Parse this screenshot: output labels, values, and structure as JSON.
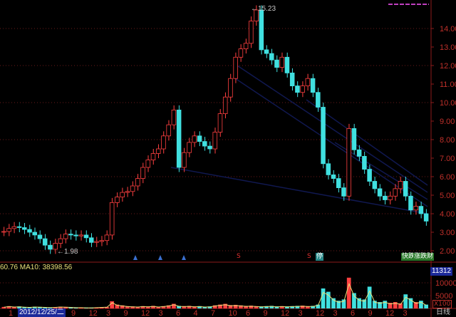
{
  "chart_data": {
    "type": "candlestick",
    "price_axis": {
      "ticks": [
        "14.00",
        "13.00",
        "12.00",
        "11.00",
        "10.00",
        "9.00",
        "8.00",
        "7.00",
        "6.00",
        "5.00",
        "4.00",
        "3.00",
        "2.00"
      ],
      "range": [
        2,
        14
      ]
    },
    "high_label": "15.23",
    "low_label": "1.98",
    "closes": [
      3.04,
      3.2,
      3.3,
      3.25,
      3.15,
      3.0,
      2.85,
      2.65,
      2.3,
      2.08,
      2.4,
      2.65,
      2.9,
      2.85,
      2.8,
      2.85,
      2.7,
      2.45,
      2.5,
      2.55,
      2.85,
      4.6,
      4.9,
      5.15,
      5.2,
      5.5,
      5.9,
      6.5,
      6.9,
      7.25,
      7.5,
      8.2,
      8.8,
      9.6,
      6.5,
      7.3,
      7.85,
      8.2,
      7.9,
      7.65,
      7.5,
      8.4,
      9.4,
      10.3,
      11.3,
      12.45,
      12.9,
      13.2,
      14.4,
      15.0,
      12.85,
      12.65,
      12.3,
      11.9,
      12.45,
      11.6,
      10.9,
      10.55,
      10.9,
      11.3,
      10.55,
      9.75,
      6.7,
      6.1,
      5.9,
      5.4,
      4.95,
      8.6,
      7.45,
      7.1,
      6.4,
      5.75,
      5.35,
      4.95,
      4.75,
      4.95,
      5.35,
      5.75,
      4.95,
      4.2,
      4.4,
      4.0,
      3.6
    ],
    "volume_axis": {
      "ticks": [
        "10000",
        "5000"
      ],
      "unit": "X100",
      "range": [
        0,
        12000
      ]
    },
    "volumes": [
      600,
      900,
      700,
      800,
      600,
      500,
      700,
      600,
      500,
      400,
      500,
      700,
      600,
      500,
      400,
      400,
      300,
      300,
      400,
      500,
      600,
      2800,
      1500,
      1200,
      900,
      800,
      700,
      900,
      800,
      1000,
      700,
      900,
      1200,
      1800,
      1000,
      900,
      1000,
      800,
      900,
      700,
      800,
      1200,
      1500,
      1800,
      1300,
      1400,
      1200,
      1000,
      1100,
      900,
      800,
      900,
      1000,
      800,
      900,
      800,
      900,
      1000,
      1100,
      900,
      1000,
      1500,
      7800,
      6500,
      4000,
      3000,
      3500,
      12000,
      6000,
      4000,
      3500,
      8500,
      3000,
      2500,
      3000,
      2200,
      2500,
      2000,
      5500,
      4000,
      2500,
      3000,
      1500
    ],
    "last_volume": "11312",
    "ma_text": "60.76  MA10: 38398.56",
    "x_ticks": [
      "1",
      "9",
      "12",
      "3",
      "9",
      "12",
      "3",
      "6",
      "4",
      "7",
      "10",
      "6",
      "9",
      "12",
      "3",
      "12",
      "3",
      "6",
      "9",
      "12",
      "3"
    ],
    "selected_date": "2012/12/25/二",
    "period": "日线",
    "event_markers": [
      "S",
      "S",
      "停"
    ],
    "right_tags": [
      "快跌",
      "涨跌财"
    ],
    "colors": {
      "up": "#ff4040",
      "down": "#40e0e0",
      "axis": "#8b1a1a",
      "ma": "#e8e07a"
    }
  }
}
